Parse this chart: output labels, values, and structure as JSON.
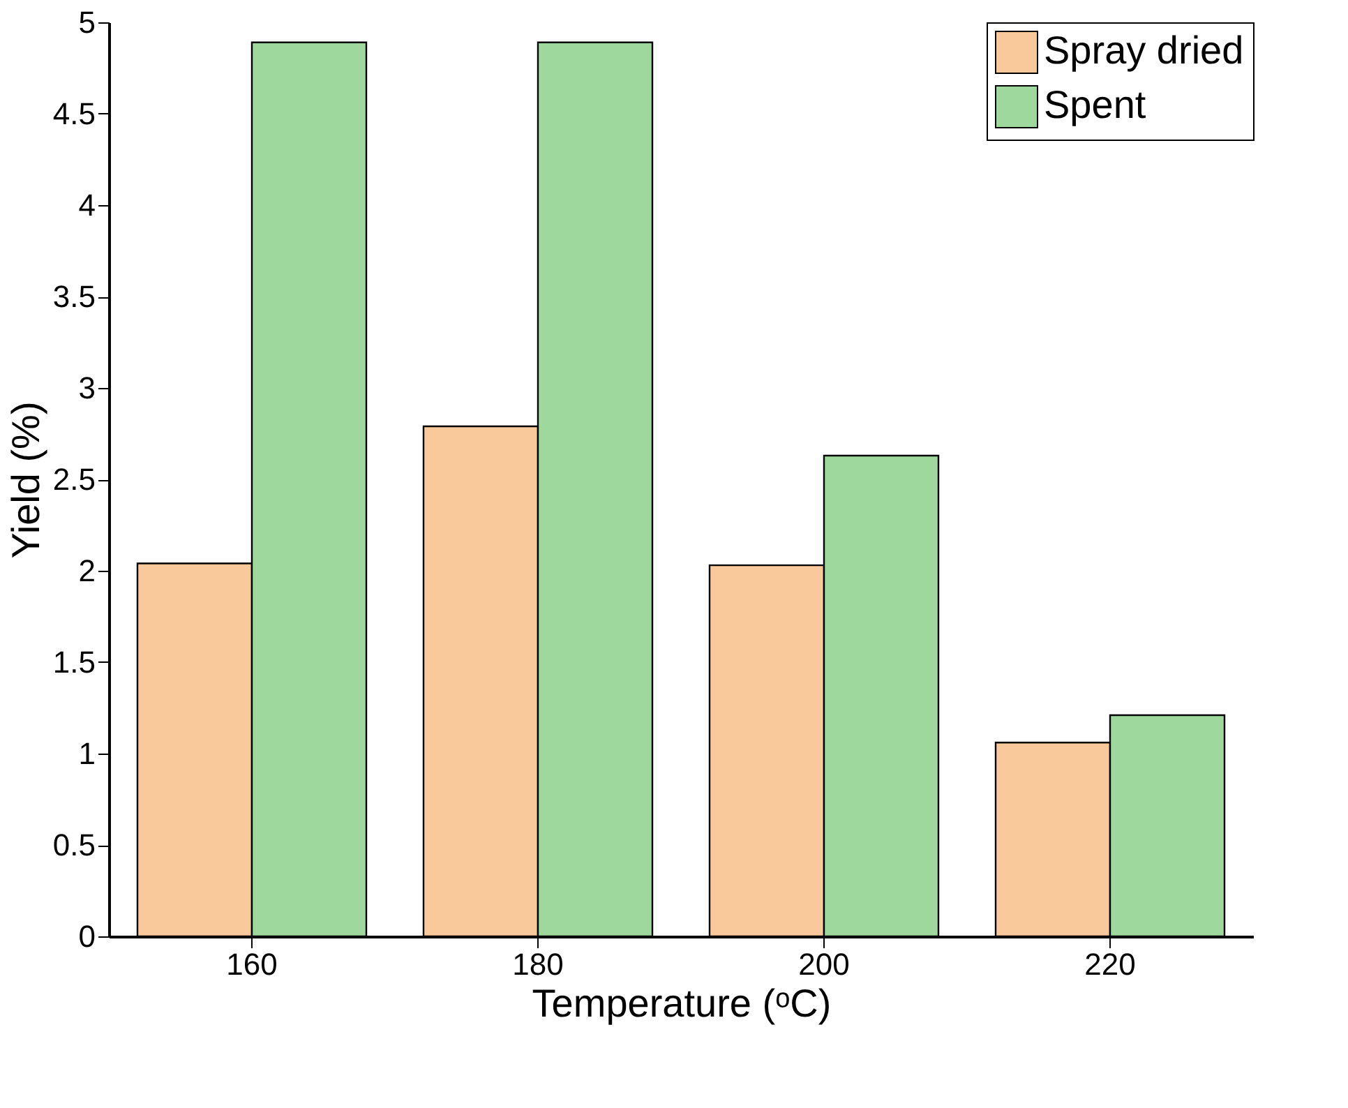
{
  "chart_data": {
    "type": "bar",
    "xlabel": "Temperature (ᵒC)",
    "ylabel": "Yield (%)",
    "categories": [
      "160",
      "180",
      "200",
      "220"
    ],
    "series": [
      {
        "name": "Spray dried",
        "color": "#f9c89b",
        "values": [
          2.04,
          2.79,
          2.03,
          1.06
        ]
      },
      {
        "name": "Spent",
        "color": "#9fd89c",
        "values": [
          4.89,
          4.89,
          2.63,
          1.21
        ]
      }
    ],
    "ylim": [
      0,
      5
    ],
    "yticks": [
      0,
      0.5,
      1,
      1.5,
      2,
      2.5,
      3,
      3.5,
      4,
      4.5,
      5
    ],
    "grid": false,
    "legend": "top right"
  }
}
